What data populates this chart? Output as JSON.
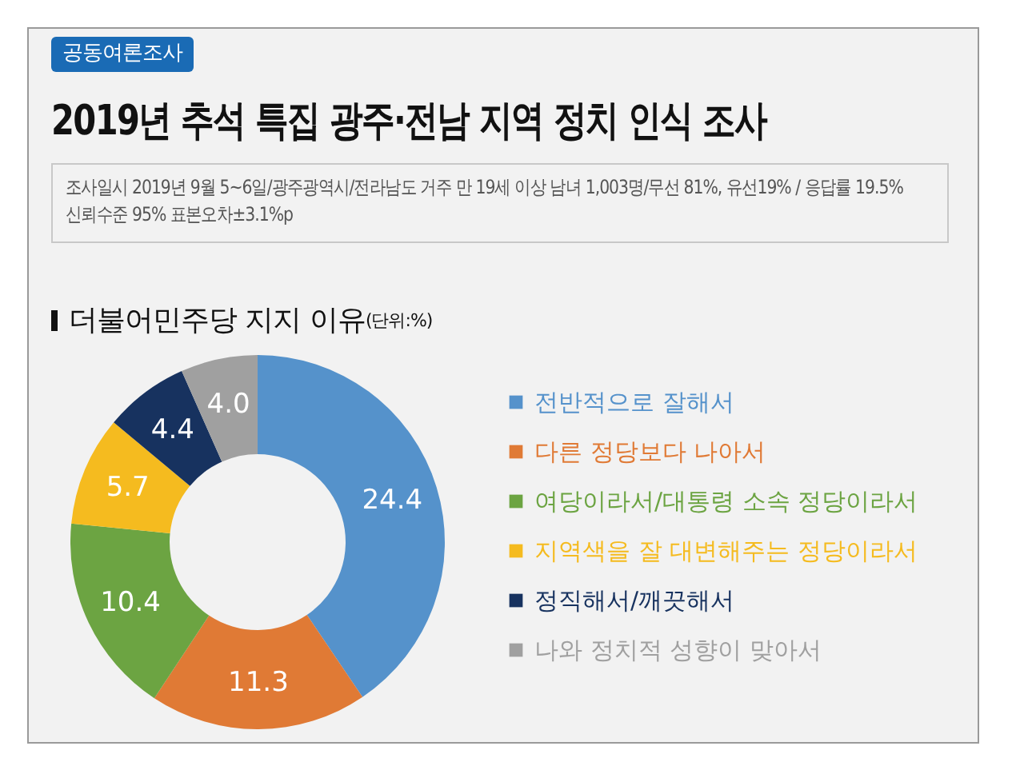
{
  "chart_data": {
    "type": "donut",
    "title": "2019년 추석 특집 광주·전남 지역 정치 인식 조사",
    "subtitle": "더불어민주당 지지 이유",
    "annotations": [
      "공동여론조사",
      "조사일시 2019년 9월 5~6일/광주광역시/전라남도 거주 만 19세 이상 남녀 1,003명/무선 81%, 유선19% / 응답률 19.5%",
      "신뢰수준 95% 표본오차±3.1%p",
      "(단위:%)"
    ],
    "categories": [
      "전반적으로 잘해서",
      "다른 정당보다 나아서",
      "여당이라서/대통령 소속 정당이라서",
      "지역색을 잘 대변해주는 정당이라서",
      "정직해서/깨끗해서",
      "나와 정치적 성향이 맞아서"
    ],
    "values": [
      24.4,
      11.3,
      10.4,
      5.7,
      4.4,
      4.0
    ],
    "value_labels": [
      "24.4",
      "11.3",
      "10.4",
      "5.7",
      "4.4",
      "4.0"
    ],
    "colors": [
      "#5592cb",
      "#e07a35",
      "#6ca442",
      "#f5bb1f",
      "#17325f",
      "#a0a0a0"
    ],
    "legend": "right"
  }
}
